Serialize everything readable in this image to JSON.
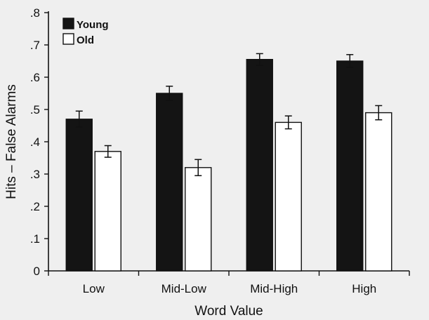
{
  "chart_data": {
    "type": "bar",
    "xlabel": "Word Value",
    "ylabel": "Hits – False Alarms",
    "categories": [
      "Low",
      "Mid-Low",
      "Mid-High",
      "High"
    ],
    "ylim": [
      0,
      0.8
    ],
    "yticks": [
      0,
      0.1,
      0.2,
      0.3,
      0.4,
      0.5,
      0.6,
      0.7,
      0.8
    ],
    "ytick_labels": [
      "0",
      ".1",
      ".2",
      ".3",
      ".4",
      ".5",
      ".6",
      ".7",
      ".8"
    ],
    "grid": false,
    "legend_position": "top-left",
    "series": [
      {
        "name": "Young",
        "color": "#141414",
        "values": [
          0.47,
          0.55,
          0.655,
          0.65
        ],
        "errors": [
          0.025,
          0.022,
          0.018,
          0.02
        ]
      },
      {
        "name": "Old",
        "color": "#ffffff",
        "values": [
          0.37,
          0.32,
          0.46,
          0.49
        ],
        "errors": [
          0.018,
          0.025,
          0.02,
          0.022
        ]
      }
    ]
  }
}
